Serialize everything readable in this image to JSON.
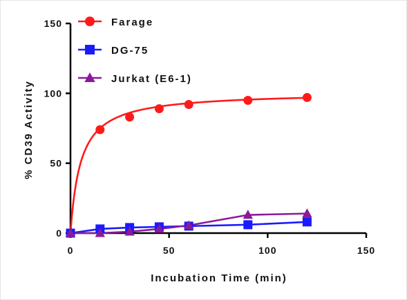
{
  "chart_data": {
    "type": "line",
    "xlabel": "Incubation Time (min)",
    "ylabel": "% CD39 Activity",
    "xlim": [
      0,
      150
    ],
    "ylim": [
      0,
      150
    ],
    "xticks": [
      0,
      50,
      100,
      150
    ],
    "yticks": [
      0,
      50,
      100,
      150
    ],
    "grid": false,
    "legend_position": "top-left",
    "series": [
      {
        "name": "Farage",
        "color": "#ff1a1a",
        "marker": "circle",
        "x": [
          0,
          15,
          30,
          45,
          60,
          90,
          120
        ],
        "y": [
          0,
          74,
          83,
          89,
          92,
          95,
          97
        ],
        "fit": "hyperbolic"
      },
      {
        "name": "DG-75",
        "color": "#1a1aff",
        "marker": "square",
        "x": [
          0,
          15,
          30,
          45,
          60,
          90,
          120
        ],
        "y": [
          0,
          3,
          4,
          4.5,
          5,
          6,
          8
        ],
        "fit": "linear"
      },
      {
        "name": "Jurkat (E6-1)",
        "color": "#8a1a9a",
        "marker": "triangle",
        "x": [
          0,
          15,
          30,
          45,
          60,
          90,
          120
        ],
        "y": [
          0,
          0,
          1,
          3,
          5.5,
          13,
          14
        ],
        "fit": "linear"
      }
    ]
  }
}
